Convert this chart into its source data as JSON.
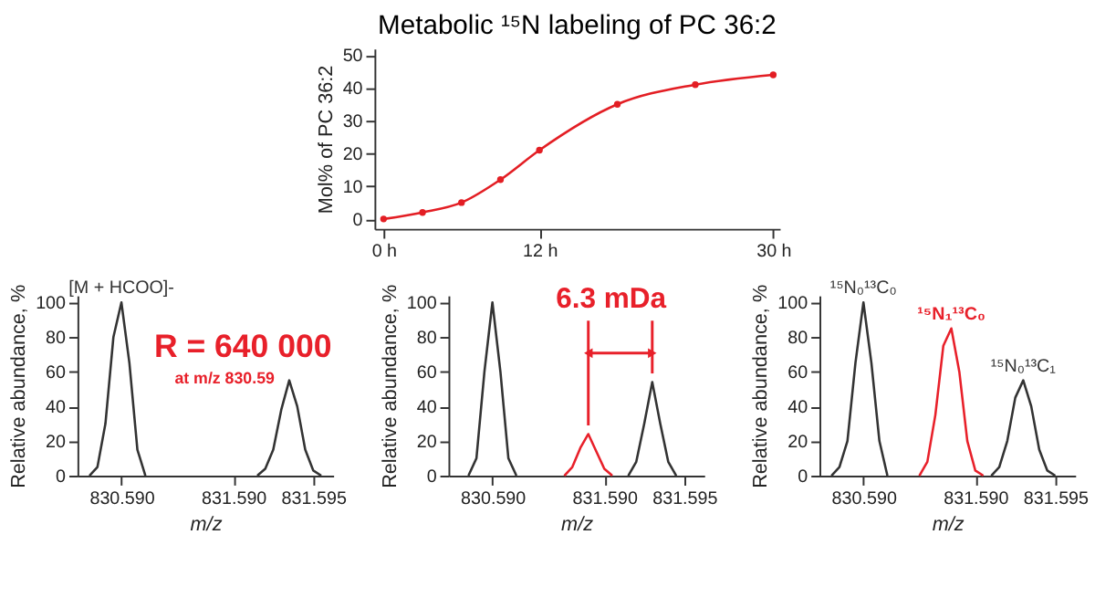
{
  "chart_data": [
    {
      "type": "line",
      "title": "Metabolic ¹⁵N labeling of PC 36:2",
      "ylabel": "Mol% of PC 36:2",
      "x": [
        0,
        3,
        6,
        9,
        12,
        18,
        24,
        30
      ],
      "series": [
        {
          "color": "#e31e24",
          "values": [
            0,
            2,
            5,
            12,
            21,
            35,
            41,
            44
          ]
        }
      ],
      "xlim": [
        -0.7,
        30.5
      ],
      "ylim": [
        -3,
        52
      ],
      "xticks": [
        {
          "value": 0,
          "label": "0 h"
        },
        {
          "value": 12,
          "label": "12 h"
        },
        {
          "value": 30,
          "label": "30 h"
        }
      ],
      "yticks": [
        0,
        10,
        20,
        30,
        40,
        50
      ],
      "marker": "circle",
      "line_style": "solid",
      "grid": false
    },
    {
      "type": "line",
      "ylabel": "Relative abundance, %",
      "xlabel": "m/z",
      "categories": [
        null,
        null,
        null,
        null,
        null,
        "830.590",
        null,
        null,
        null,
        null,
        null,
        null,
        null,
        null,
        null,
        null,
        null,
        null,
        null,
        "831.590",
        null,
        null,
        null,
        null,
        null,
        null,
        null,
        null,
        null,
        "831.595",
        null,
        null
      ],
      "series": [
        {
          "color": "#333333",
          "values": [
            null,
            0,
            5,
            30,
            80,
            100,
            65,
            15,
            0,
            null,
            null,
            null,
            null,
            null,
            null,
            null,
            null,
            null,
            null,
            null,
            null,
            null,
            null,
            null,
            null,
            null,
            null,
            null,
            null,
            null,
            null,
            null
          ]
        },
        {
          "color": "#333333",
          "values": [
            null,
            null,
            null,
            null,
            null,
            null,
            null,
            null,
            null,
            null,
            null,
            null,
            null,
            null,
            null,
            null,
            null,
            null,
            null,
            null,
            null,
            null,
            0,
            4,
            15,
            38,
            55,
            40,
            15,
            3,
            0,
            null
          ]
        }
      ],
      "ylim": [
        0,
        104
      ],
      "yticks": [
        0,
        20,
        40,
        60,
        80,
        100
      ],
      "annotations": [
        {
          "text": "[M + HCOO]-",
          "x": "830.590",
          "y": 100
        },
        "R = 640 000",
        "at m/z 830.59"
      ],
      "grid": false
    },
    {
      "type": "line",
      "ylabel": "Relative abundance, %",
      "xlabel": "m/z",
      "categories": [
        null,
        null,
        null,
        null,
        null,
        "830.590",
        null,
        null,
        null,
        null,
        null,
        null,
        null,
        null,
        null,
        null,
        null,
        null,
        null,
        "831.590",
        null,
        null,
        null,
        null,
        null,
        null,
        null,
        null,
        null,
        "831.595",
        null,
        null
      ],
      "series": [
        {
          "color": "#333333",
          "values": [
            null,
            null,
            0,
            10,
            60,
            100,
            60,
            10,
            0,
            null,
            null,
            null,
            null,
            null,
            null,
            null,
            null,
            null,
            null,
            null,
            null,
            null,
            null,
            null,
            null,
            null,
            null,
            null,
            null,
            null,
            null,
            null
          ]
        },
        {
          "color": "#e8202a",
          "values": [
            null,
            null,
            null,
            null,
            null,
            null,
            null,
            null,
            null,
            null,
            null,
            null,
            null,
            null,
            0,
            5,
            16,
            24,
            14,
            4,
            0,
            null,
            null,
            null,
            null,
            null,
            null,
            null,
            null,
            null,
            null,
            null
          ]
        },
        {
          "color": "#333333",
          "values": [
            null,
            null,
            null,
            null,
            null,
            null,
            null,
            null,
            null,
            null,
            null,
            null,
            null,
            null,
            null,
            null,
            null,
            null,
            null,
            null,
            null,
            null,
            0,
            8,
            30,
            54,
            30,
            8,
            0,
            null,
            null,
            null
          ]
        }
      ],
      "ylim": [
        0,
        104
      ],
      "yticks": [
        0,
        20,
        40,
        60,
        80,
        100
      ],
      "annotations": [
        "6.3 mDa"
      ],
      "grid": false
    },
    {
      "type": "line",
      "ylabel": "Relative abundance, %",
      "xlabel": "m/z",
      "categories": [
        null,
        null,
        null,
        null,
        null,
        "830.590",
        null,
        null,
        null,
        null,
        null,
        null,
        null,
        null,
        null,
        null,
        null,
        null,
        null,
        "831.590",
        null,
        null,
        null,
        null,
        null,
        null,
        null,
        null,
        null,
        "831.595",
        null,
        null
      ],
      "series": [
        {
          "color": "#333333",
          "values": [
            null,
            0,
            5,
            20,
            65,
            100,
            65,
            20,
            0,
            null,
            null,
            null,
            null,
            null,
            null,
            null,
            null,
            null,
            null,
            null,
            null,
            null,
            null,
            null,
            null,
            null,
            null,
            null,
            null,
            null,
            null,
            null
          ]
        },
        {
          "color": "#e8202a",
          "values": [
            null,
            null,
            null,
            null,
            null,
            null,
            null,
            null,
            null,
            null,
            null,
            null,
            0,
            8,
            35,
            75,
            85,
            60,
            20,
            3,
            0,
            null,
            null,
            null,
            null,
            null,
            null,
            null,
            null,
            null,
            null,
            null
          ]
        },
        {
          "color": "#333333",
          "values": [
            null,
            null,
            null,
            null,
            null,
            null,
            null,
            null,
            null,
            null,
            null,
            null,
            null,
            null,
            null,
            null,
            null,
            null,
            null,
            null,
            null,
            0,
            5,
            20,
            45,
            55,
            40,
            15,
            3,
            0,
            null,
            null
          ]
        }
      ],
      "ylim": [
        0,
        104
      ],
      "yticks": [
        0,
        20,
        40,
        60,
        80,
        100
      ],
      "annotations": [
        {
          "text": "¹⁵N₀¹³C₀",
          "x": "830.590",
          "y": 100
        },
        {
          "text": "¹⁵N₁¹³C₀",
          "y": 85
        },
        {
          "text": "¹⁵N₀¹³C₁",
          "y": 55
        }
      ],
      "grid": false
    }
  ]
}
